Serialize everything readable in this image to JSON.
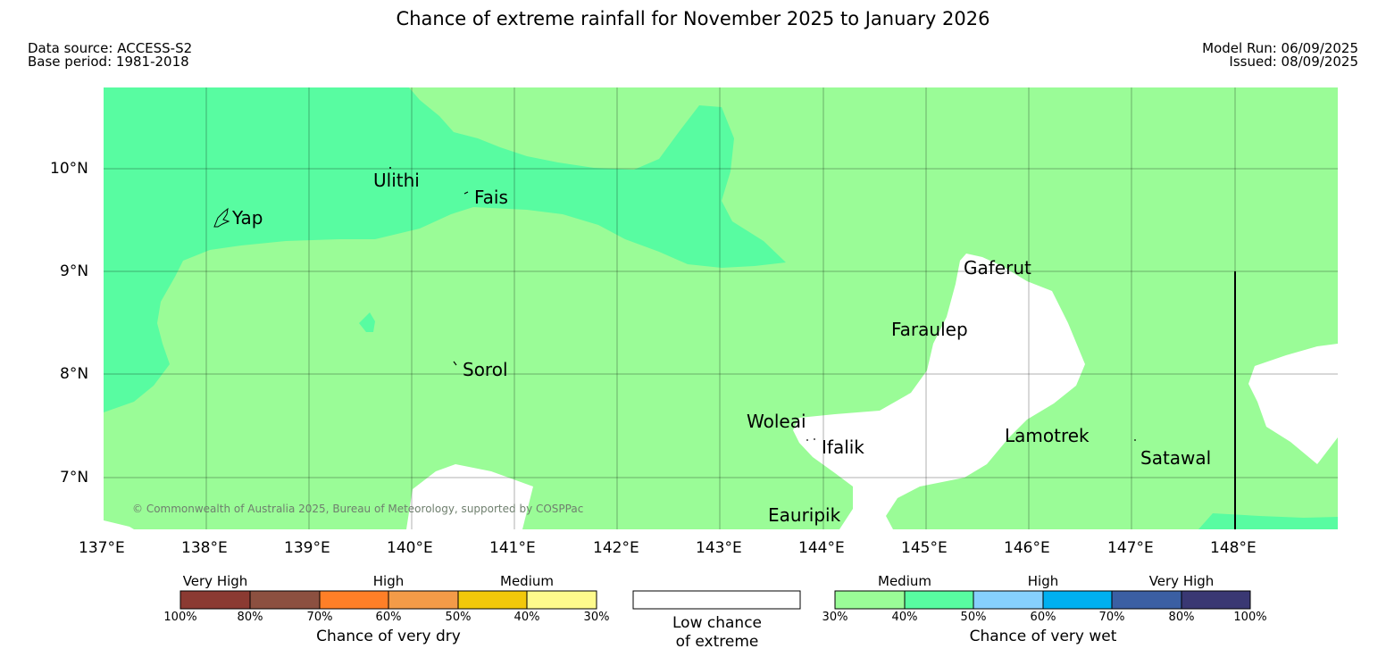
{
  "title": "Chance of extreme rainfall for November 2025 to January 2026",
  "header": {
    "data_source": "Data source: ACCESS-S2",
    "base_period": "Base period: 1981-2018",
    "model_run": "Model Run: 06/09/2025",
    "issued": "Issued: 08/09/2025"
  },
  "map": {
    "lat_labels": [
      "10°N",
      "9°N",
      "8°N",
      "7°N"
    ],
    "lon_labels": [
      "137°E",
      "138°E",
      "139°E",
      "140°E",
      "141°E",
      "142°E",
      "143°E",
      "144°E",
      "145°E",
      "146°E",
      "147°E",
      "148°E"
    ],
    "islands": {
      "yap": "Yap",
      "ulithi": "Ulithi",
      "fais": "Fais",
      "sorol": "Sorol",
      "gaferut": "Gaferut",
      "faraulep": "Faraulep",
      "woleai": "Woleai",
      "ifalik": "Ifalik",
      "lamotrek": "Lamotrek",
      "satawal": "Satawal",
      "eauripik": "Eauripik"
    },
    "copyright": "© Commonwealth of Australia 2025, Bureau of Meteorology, supported by COSPPac",
    "colors": {
      "medium_30_40": "#9afc97",
      "medium_40_50": "#58fca1",
      "low": "#ffffff"
    }
  },
  "legend": {
    "dry": {
      "categories": [
        "Very High",
        "High",
        "Medium"
      ],
      "ticks": [
        "100%",
        "80%",
        "70%",
        "60%",
        "50%",
        "40%",
        "30%"
      ],
      "colors": [
        "#8b3a32",
        "#8c5040",
        "#ff7f27",
        "#f39b48",
        "#f2c80a",
        "#fefa8c"
      ],
      "title": "Chance of very dry"
    },
    "low": {
      "line1": "Low chance",
      "line2": "of extreme"
    },
    "wet": {
      "categories": [
        "Medium",
        "High",
        "Very High"
      ],
      "ticks": [
        "30%",
        "40%",
        "50%",
        "60%",
        "70%",
        "80%",
        "100%"
      ],
      "colors": [
        "#9afc97",
        "#58fca1",
        "#86d0fd",
        "#00b0f0",
        "#3b5fa3",
        "#3a3873"
      ],
      "title": "Chance of very wet"
    }
  }
}
